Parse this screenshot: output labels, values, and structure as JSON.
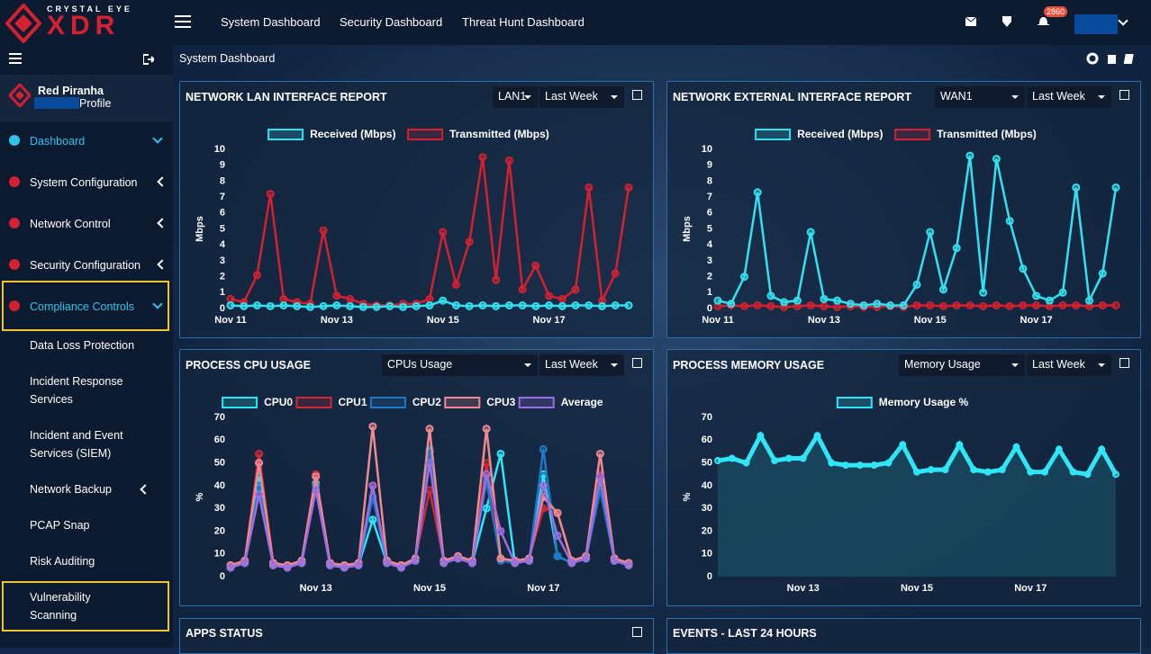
{
  "brand": {
    "tagline": "CRYSTAL EYE",
    "name": "XDR"
  },
  "top_nav": [
    "System Dashboard",
    "Security Dashboard",
    "Threat Hunt Dashboard"
  ],
  "notification_count": 2860,
  "user": {
    "name": "Red Piranha",
    "role": "Profile"
  },
  "sidebar": {
    "menu": [
      "Dashboard",
      "System Configuration",
      "Network Control",
      "Security Configuration",
      "Compliance Controls"
    ],
    "submenu": [
      "Data Loss Protection",
      "Incident Response Services",
      "Incident and Event Services (SIEM)",
      "Network Backup",
      "PCAP Snap",
      "Risk Auditing",
      "Vulnerability Scanning"
    ]
  },
  "breadcrumb": "System Dashboard",
  "panels": [
    {
      "controls": [
        "LAN1",
        "Last Week"
      ]
    },
    {
      "controls": [
        "WAN1",
        "Last Week"
      ]
    },
    {
      "controls": [
        "CPUs Usage",
        "Last Week"
      ]
    },
    {
      "controls": [
        "Memory Usage",
        "Last Week"
      ]
    }
  ],
  "bottom_panels": [
    "APPS STATUS",
    "EVENTS - LAST 24 HOURS"
  ],
  "chart_data": [
    {
      "type": "line",
      "title": "NETWORK LAN INTERFACE REPORT",
      "y_label": "Mbps",
      "ylim": [
        0,
        10
      ],
      "yticks": [
        0,
        1,
        2,
        3,
        4,
        5,
        6,
        7,
        8,
        9,
        10
      ],
      "grid": false,
      "categories": [
        "Nov 11",
        null,
        null,
        null,
        null,
        null,
        null,
        null,
        "Nov 13",
        null,
        null,
        null,
        null,
        null,
        null,
        null,
        "Nov 15",
        null,
        null,
        null,
        null,
        null,
        null,
        null,
        "Nov 17",
        null,
        null,
        null,
        null,
        null,
        null
      ],
      "series": [
        {
          "name": "Transmitted (Mbps)",
          "color": "#d42030",
          "values": [
            0.6,
            0.4,
            2.1,
            7.2,
            0.6,
            0.4,
            0.3,
            4.9,
            0.8,
            0.6,
            0.3,
            0.2,
            0.2,
            0.3,
            0.3,
            0.6,
            4.8,
            1.5,
            4.2,
            9.5,
            1.8,
            9.3,
            1.2,
            2.7,
            0.8,
            0.6,
            1.2,
            7.6,
            0.5,
            2.2,
            7.6
          ]
        },
        {
          "name": "Received (Mbps)",
          "color": "#33e0f0",
          "values": [
            0.2,
            0.15,
            0.2,
            0.15,
            0.2,
            0.15,
            0.1,
            0.15,
            0.2,
            0.15,
            0.1,
            0.1,
            0.15,
            0.1,
            0.15,
            0.2,
            0.5,
            0.2,
            0.15,
            0.2,
            0.15,
            0.2,
            0.2,
            0.15,
            0.2,
            0.15,
            0.2,
            0.2,
            0.15,
            0.2,
            0.2
          ]
        }
      ],
      "legend_order": [
        1,
        0
      ]
    },
    {
      "type": "line",
      "title": "NETWORK EXTERNAL INTERFACE REPORT",
      "y_label": "Mbps",
      "ylim": [
        0,
        10
      ],
      "yticks": [
        0,
        1,
        2,
        3,
        4,
        5,
        6,
        7,
        8,
        9,
        10
      ],
      "grid": false,
      "categories": [
        "Nov 11",
        null,
        null,
        null,
        null,
        null,
        null,
        null,
        "Nov 13",
        null,
        null,
        null,
        null,
        null,
        null,
        null,
        "Nov 15",
        null,
        null,
        null,
        null,
        null,
        null,
        null,
        "Nov 17",
        null,
        null,
        null,
        null,
        null,
        null
      ],
      "series": [
        {
          "name": "Transmitted (Mbps)",
          "color": "#d42030",
          "values": [
            0.15,
            0.2,
            0.15,
            0.2,
            0.15,
            0.1,
            0.15,
            0.2,
            0.15,
            0.1,
            0.15,
            0.1,
            0.1,
            0.15,
            0.1,
            0.2,
            0.2,
            0.15,
            0.2,
            0.2,
            0.15,
            0.2,
            0.15,
            0.2,
            0.2,
            0.15,
            0.2,
            0.2,
            0.15,
            0.2,
            0.2
          ]
        },
        {
          "name": "Received (Mbps)",
          "color": "#33e0f0",
          "values": [
            0.5,
            0.3,
            2,
            7.3,
            0.8,
            0.4,
            0.5,
            4.8,
            0.6,
            0.5,
            0.3,
            0.2,
            0.3,
            0.2,
            0.2,
            1.5,
            4.8,
            1.2,
            3.8,
            9.6,
            1,
            9.4,
            5.5,
            2.5,
            0.8,
            0.5,
            1,
            7.6,
            0.5,
            2.2,
            7.6
          ]
        }
      ],
      "legend_order": [
        1,
        0
      ]
    },
    {
      "type": "line",
      "title": "PROCESS CPU USAGE",
      "y_label": "%",
      "ylim": [
        0,
        70
      ],
      "yticks": [
        0,
        10,
        20,
        30,
        40,
        50,
        60,
        70
      ],
      "grid": false,
      "categories": [
        null,
        null,
        null,
        null,
        null,
        null,
        "Nov 13",
        null,
        null,
        null,
        null,
        null,
        null,
        null,
        "Nov 15",
        null,
        null,
        null,
        null,
        null,
        null,
        null,
        "Nov 17",
        null,
        null,
        null,
        null,
        null,
        null
      ],
      "series": [
        {
          "name": "CPU0",
          "color": "#2ee6f6",
          "values": [
            4,
            6,
            44,
            5,
            4,
            6,
            41,
            5,
            4,
            5,
            25,
            6,
            4,
            7,
            55,
            6,
            8,
            6,
            30,
            54,
            6,
            7,
            45,
            9,
            6,
            8,
            42,
            7,
            5
          ]
        },
        {
          "name": "CPU1",
          "color": "#d02a36",
          "values": [
            5,
            7,
            54,
            6,
            5,
            7,
            45,
            6,
            5,
            6,
            40,
            7,
            5,
            8,
            38,
            7,
            9,
            7,
            50,
            8,
            7,
            8,
            30,
            28,
            7,
            9,
            45,
            8,
            6
          ]
        },
        {
          "name": "CPU2",
          "color": "#1f77c8",
          "values": [
            4,
            6,
            40,
            5,
            4,
            6,
            40,
            5,
            4,
            5,
            35,
            6,
            4,
            7,
            56,
            6,
            8,
            6,
            42,
            7,
            6,
            7,
            56,
            9,
            6,
            8,
            38,
            7,
            5
          ]
        },
        {
          "name": "CPU3",
          "color": "#f08a90",
          "values": [
            5,
            7,
            50,
            6,
            5,
            7,
            44,
            6,
            5,
            6,
            66,
            7,
            5,
            8,
            65,
            7,
            9,
            7,
            65,
            8,
            7,
            8,
            35,
            28,
            7,
            9,
            54,
            8,
            6
          ]
        },
        {
          "name": "Average",
          "color": "#9a70e0",
          "values": [
            4,
            6,
            36,
            5,
            4,
            6,
            38,
            5,
            4,
            5,
            40,
            6,
            4,
            7,
            50,
            6,
            8,
            6,
            45,
            20,
            6,
            7,
            40,
            18,
            6,
            8,
            44,
            7,
            5
          ]
        }
      ]
    },
    {
      "type": "area",
      "title": "PROCESS MEMORY USAGE",
      "y_label": "%",
      "ylim": [
        0,
        70
      ],
      "yticks": [
        0,
        10,
        20,
        30,
        40,
        50,
        60,
        70
      ],
      "grid": false,
      "categories": [
        null,
        null,
        null,
        null,
        null,
        null,
        "Nov 13",
        null,
        null,
        null,
        null,
        null,
        null,
        null,
        "Nov 15",
        null,
        null,
        null,
        null,
        null,
        null,
        null,
        "Nov 17",
        null,
        null,
        null,
        null,
        null,
        null
      ],
      "series": [
        {
          "name": "Memory Usage %",
          "color": "#2ee6f6",
          "values": [
            51,
            52,
            50,
            62,
            51,
            52,
            52,
            62,
            50,
            49,
            49,
            49,
            50,
            58,
            46,
            47,
            47,
            58,
            47,
            46,
            47,
            57,
            46,
            46,
            56,
            46,
            45,
            56,
            45
          ]
        }
      ]
    }
  ]
}
